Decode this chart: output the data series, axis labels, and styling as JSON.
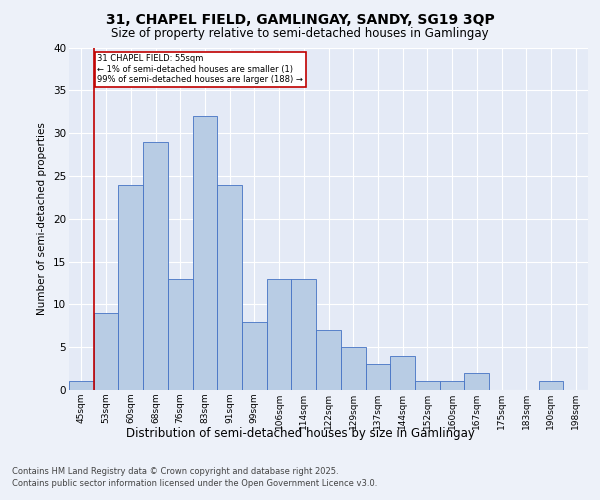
{
  "title_line1": "31, CHAPEL FIELD, GAMLINGAY, SANDY, SG19 3QP",
  "title_line2": "Size of property relative to semi-detached houses in Gamlingay",
  "xlabel": "Distribution of semi-detached houses by size in Gamlingay",
  "ylabel": "Number of semi-detached properties",
  "categories": [
    "45sqm",
    "53sqm",
    "60sqm",
    "68sqm",
    "76sqm",
    "83sqm",
    "91sqm",
    "99sqm",
    "106sqm",
    "114sqm",
    "122sqm",
    "129sqm",
    "137sqm",
    "144sqm",
    "152sqm",
    "160sqm",
    "167sqm",
    "175sqm",
    "183sqm",
    "190sqm",
    "198sqm"
  ],
  "values": [
    1,
    9,
    24,
    29,
    13,
    32,
    24,
    8,
    13,
    13,
    7,
    5,
    3,
    4,
    1,
    1,
    2,
    0,
    0,
    1,
    0
  ],
  "bar_color": "#b8cce4",
  "bar_edge_color": "#4472c4",
  "vline_x_idx": 1,
  "vline_color": "#c00000",
  "annotation_title": "31 CHAPEL FIELD: 55sqm",
  "annotation_line1": "← 1% of semi-detached houses are smaller (1)",
  "annotation_line2": "99% of semi-detached houses are larger (188) →",
  "annotation_box_color": "#c00000",
  "ylim": [
    0,
    40
  ],
  "yticks": [
    0,
    5,
    10,
    15,
    20,
    25,
    30,
    35,
    40
  ],
  "footnote1": "Contains HM Land Registry data © Crown copyright and database right 2025.",
  "footnote2": "Contains public sector information licensed under the Open Government Licence v3.0.",
  "bg_color": "#edf1f9",
  "plot_bg_color": "#e4eaf6"
}
